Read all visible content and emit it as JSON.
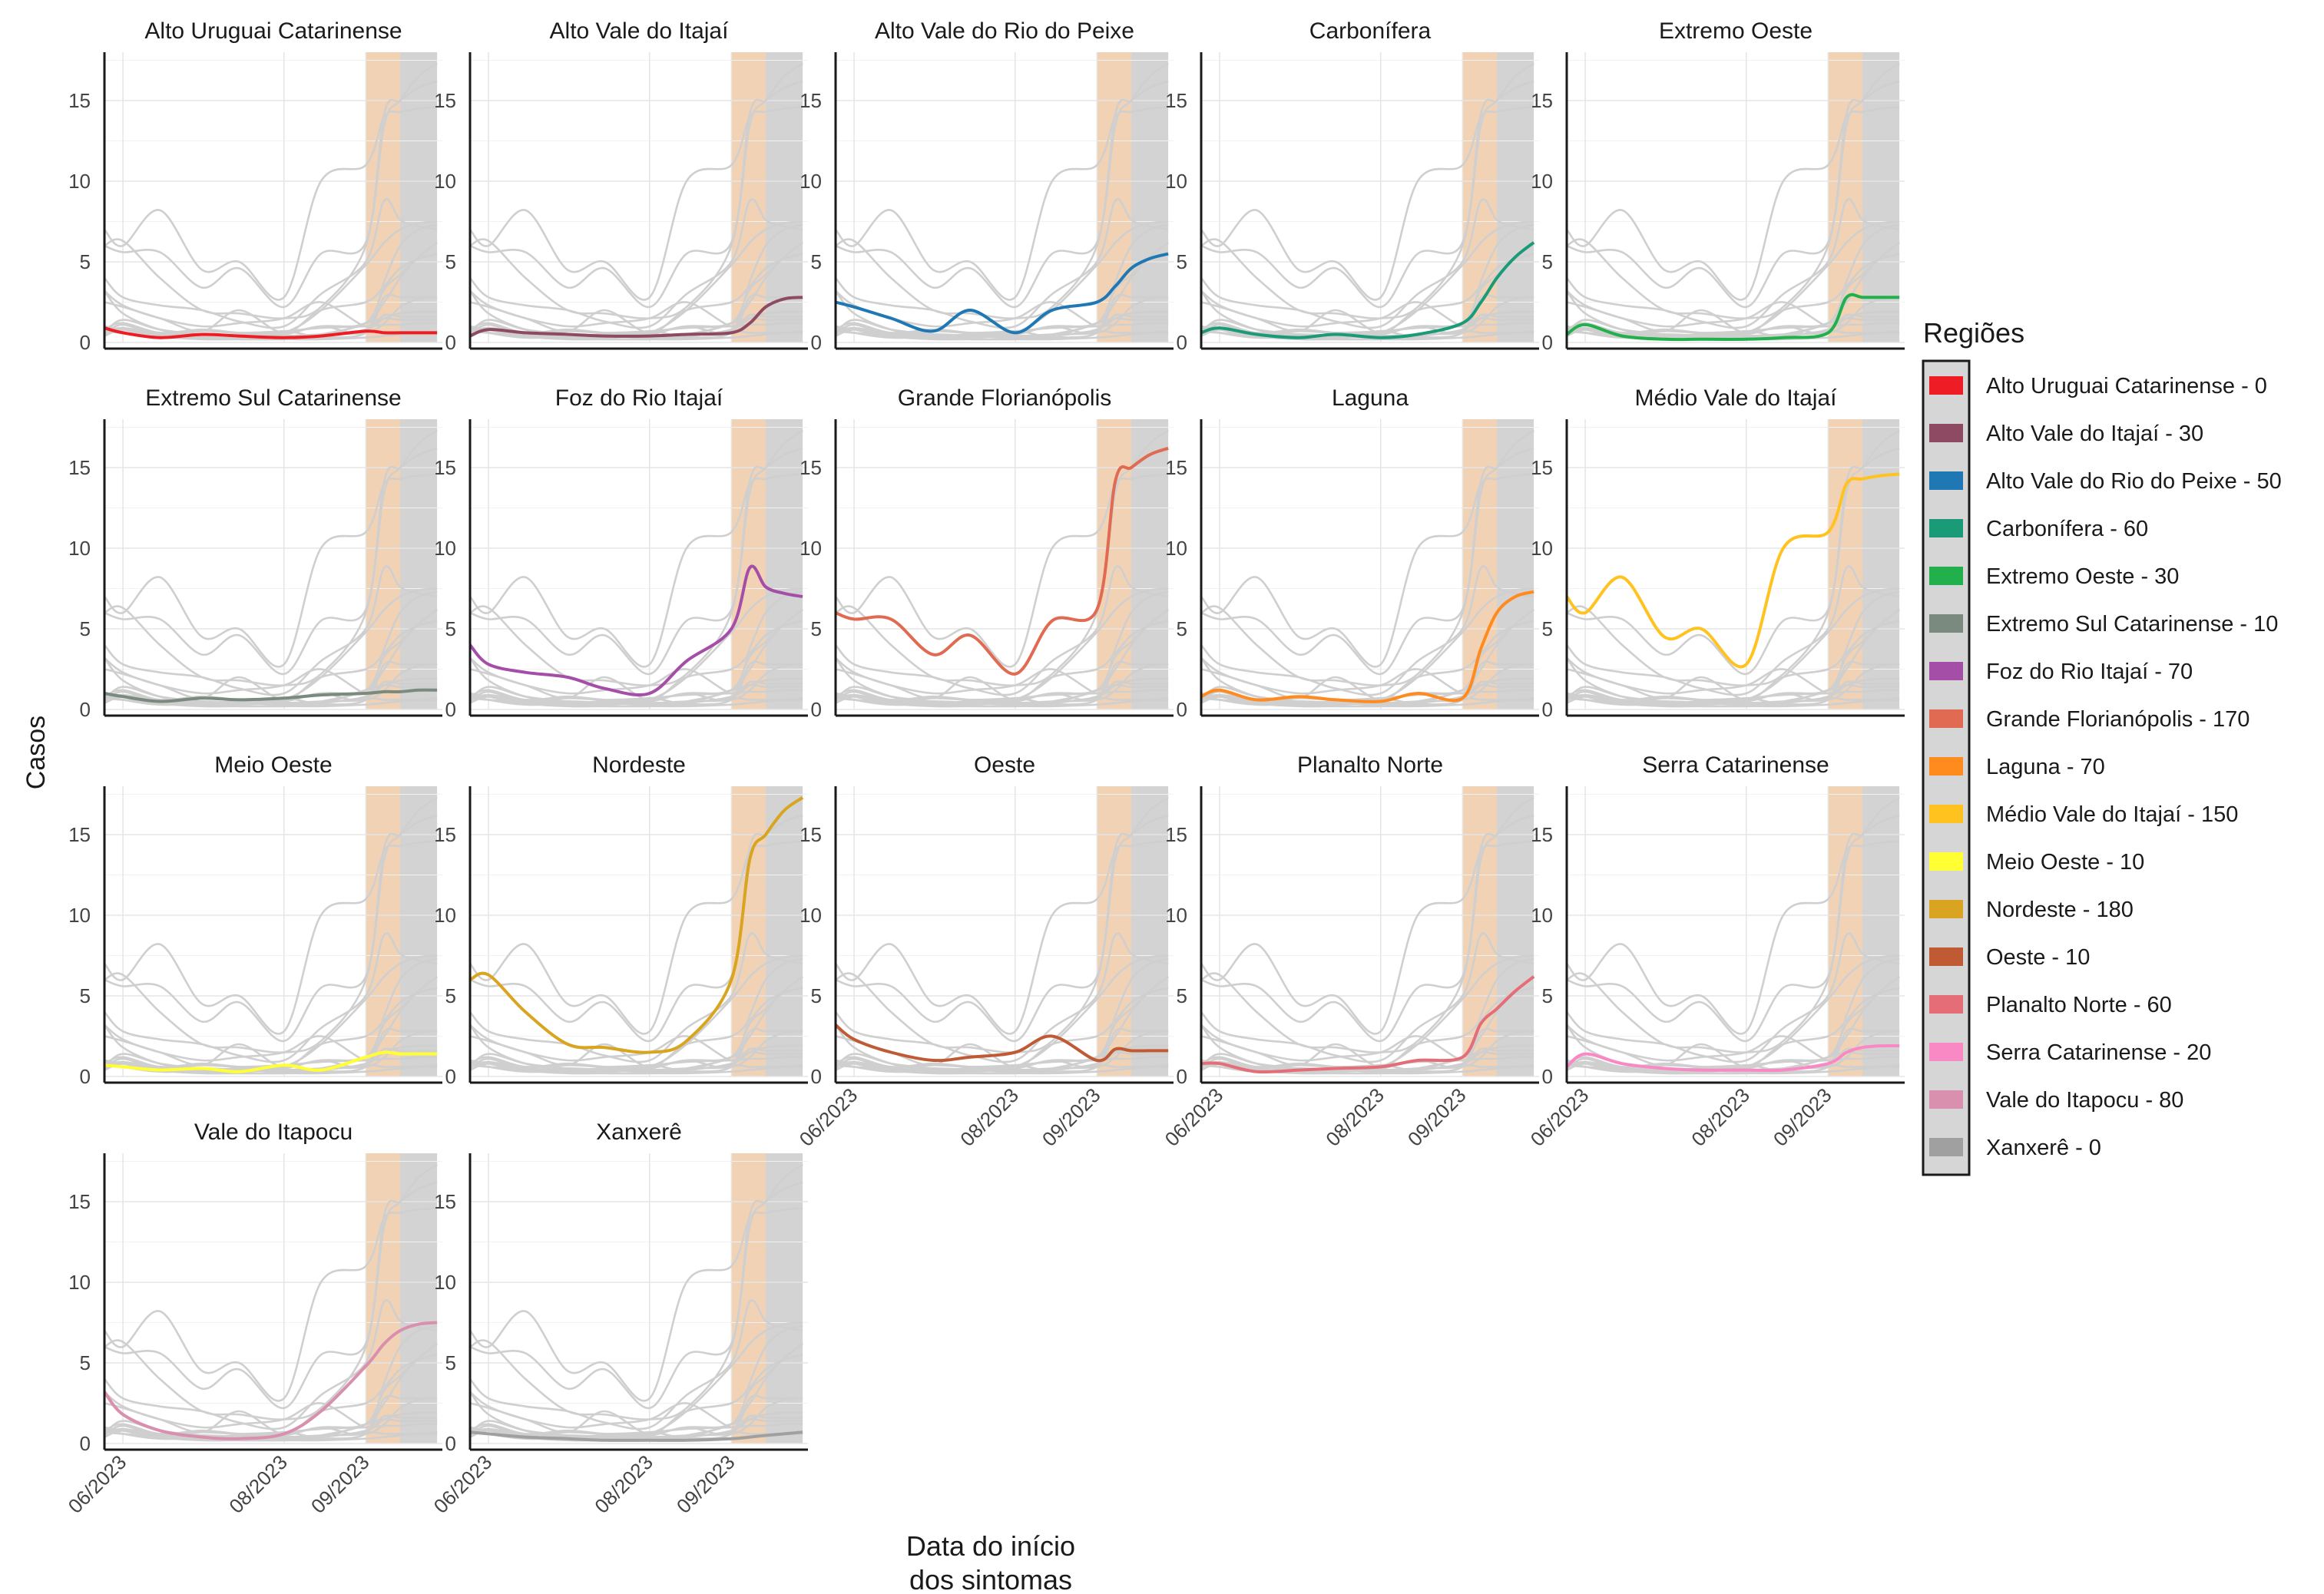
{
  "chart_data": {
    "type": "line",
    "ylabel": "Casos",
    "xlabel_lines": [
      "Data do início",
      "dos sintomas"
    ],
    "ylim": [
      0,
      18
    ],
    "yticks": [
      0,
      5,
      10,
      15
    ],
    "xlim": [
      "2023-05-25",
      "2023-09-30"
    ],
    "xticks": [
      {
        "date": "2023-06-01",
        "label": "06/2023"
      },
      {
        "date": "2023-08-01",
        "label": "08/2023"
      },
      {
        "date": "2023-09-01",
        "label": "09/2023"
      }
    ],
    "shaded_periods": [
      {
        "start": "2023-09-01",
        "end": "2023-09-14",
        "color": "#f2d2b4"
      },
      {
        "start": "2023-09-14",
        "end": "2023-09-28",
        "color": "#d3d3d3"
      }
    ],
    "grid": true,
    "legend": {
      "title": "Regiões",
      "position": "right",
      "items": [
        {
          "label": "Alto Uruguai Catarinense - 0",
          "color": "#ee1c25"
        },
        {
          "label": "Alto Vale do Itajaí - 30",
          "color": "#8e4a63"
        },
        {
          "label": "Alto Vale do Rio do Peixe - 50",
          "color": "#1f78b4"
        },
        {
          "label": "Carbonífera - 60",
          "color": "#1b9a77"
        },
        {
          "label": "Extremo Oeste - 30",
          "color": "#21b04b"
        },
        {
          "label": "Extremo Sul Catarinense - 10",
          "color": "#7a8a7e"
        },
        {
          "label": "Foz do Rio Itajaí - 70",
          "color": "#a54ea8"
        },
        {
          "label": "Grande Florianópolis - 170",
          "color": "#e06a52"
        },
        {
          "label": "Laguna - 70",
          "color": "#ff8a1e"
        },
        {
          "label": "Médio Vale do Itajaí - 150",
          "color": "#ffc21f"
        },
        {
          "label": "Meio Oeste - 10",
          "color": "#ffff33"
        },
        {
          "label": "Nordeste - 180",
          "color": "#d9a520"
        },
        {
          "label": "Oeste - 10",
          "color": "#c05a35"
        },
        {
          "label": "Planalto Norte - 60",
          "color": "#e46d77"
        },
        {
          "label": "Serra Catarinense - 20",
          "color": "#f989c4"
        },
        {
          "label": "Vale do Itapocu - 80",
          "color": "#d98fae"
        },
        {
          "label": "Xanxerê - 0",
          "color": "#a0a0a0"
        }
      ]
    },
    "x_dates": [
      "2023-05-25",
      "2023-06-01",
      "2023-06-15",
      "2023-07-01",
      "2023-07-15",
      "2023-08-01",
      "2023-08-15",
      "2023-09-01",
      "2023-09-08",
      "2023-09-14",
      "2023-09-21",
      "2023-09-28"
    ],
    "series": [
      {
        "name": "Alto Uruguai Catarinense",
        "values": [
          0.9,
          0.6,
          0.3,
          0.5,
          0.4,
          0.3,
          0.4,
          0.7,
          0.6,
          0.6,
          0.6,
          0.6
        ]
      },
      {
        "name": "Alto Vale do Itajaí",
        "values": [
          0.4,
          0.8,
          0.6,
          0.5,
          0.4,
          0.4,
          0.5,
          0.6,
          1.2,
          2.2,
          2.7,
          2.8
        ]
      },
      {
        "name": "Alto Vale do Rio do Peixe",
        "values": [
          2.5,
          2.2,
          1.5,
          0.7,
          2.0,
          0.6,
          2.0,
          2.5,
          3.5,
          4.6,
          5.2,
          5.5
        ]
      },
      {
        "name": "Carbonífera",
        "values": [
          0.6,
          0.9,
          0.5,
          0.3,
          0.5,
          0.3,
          0.5,
          1.2,
          2.5,
          4.0,
          5.3,
          6.2
        ]
      },
      {
        "name": "Extremo Oeste",
        "values": [
          0.5,
          1.1,
          0.4,
          0.2,
          0.2,
          0.2,
          0.3,
          0.6,
          2.8,
          2.8,
          2.8,
          2.8
        ]
      },
      {
        "name": "Extremo Sul Catarinense",
        "values": [
          1.0,
          0.8,
          0.5,
          0.7,
          0.6,
          0.7,
          0.9,
          1.0,
          1.1,
          1.1,
          1.2,
          1.2
        ]
      },
      {
        "name": "Foz do Rio Itajaí",
        "values": [
          4.0,
          2.8,
          2.3,
          2.0,
          1.3,
          1.0,
          3.0,
          5.0,
          8.8,
          7.6,
          7.2,
          7.0
        ]
      },
      {
        "name": "Grande Florianópolis",
        "values": [
          6.0,
          5.6,
          5.6,
          3.4,
          4.6,
          2.2,
          5.5,
          6.2,
          14.2,
          15.0,
          15.8,
          16.2
        ]
      },
      {
        "name": "Laguna",
        "values": [
          0.8,
          1.2,
          0.6,
          0.8,
          0.6,
          0.5,
          1.0,
          0.7,
          3.8,
          6.0,
          7.0,
          7.3
        ]
      },
      {
        "name": "Médio Vale do Itajaí",
        "values": [
          7.0,
          6.0,
          8.2,
          4.5,
          5.0,
          2.8,
          10.0,
          11.0,
          14.0,
          14.3,
          14.5,
          14.6
        ]
      },
      {
        "name": "Meio Oeste",
        "values": [
          0.7,
          0.6,
          0.4,
          0.5,
          0.3,
          0.7,
          0.4,
          1.2,
          1.5,
          1.4,
          1.4,
          1.4
        ]
      },
      {
        "name": "Nordeste",
        "values": [
          6.0,
          6.3,
          4.0,
          2.0,
          1.8,
          1.5,
          2.2,
          6.0,
          13.5,
          15.0,
          16.5,
          17.3
        ]
      },
      {
        "name": "Oeste",
        "values": [
          3.2,
          2.3,
          1.5,
          1.0,
          1.2,
          1.5,
          2.5,
          1.0,
          1.7,
          1.6,
          1.6,
          1.6
        ]
      },
      {
        "name": "Planalto Norte",
        "values": [
          0.8,
          0.8,
          0.3,
          0.4,
          0.5,
          0.6,
          1.0,
          1.2,
          3.3,
          4.2,
          5.3,
          6.2
        ]
      },
      {
        "name": "Serra Catarinense",
        "values": [
          0.6,
          1.4,
          0.8,
          0.5,
          0.4,
          0.4,
          0.4,
          0.8,
          1.5,
          1.8,
          1.9,
          1.9
        ]
      },
      {
        "name": "Vale do Itapocu",
        "values": [
          3.2,
          1.8,
          0.8,
          0.4,
          0.3,
          0.6,
          2.0,
          4.8,
          6.2,
          7.0,
          7.4,
          7.5
        ]
      },
      {
        "name": "Xanxerê",
        "values": [
          0.7,
          0.6,
          0.4,
          0.3,
          0.2,
          0.2,
          0.2,
          0.3,
          0.4,
          0.5,
          0.6,
          0.7
        ]
      }
    ]
  }
}
